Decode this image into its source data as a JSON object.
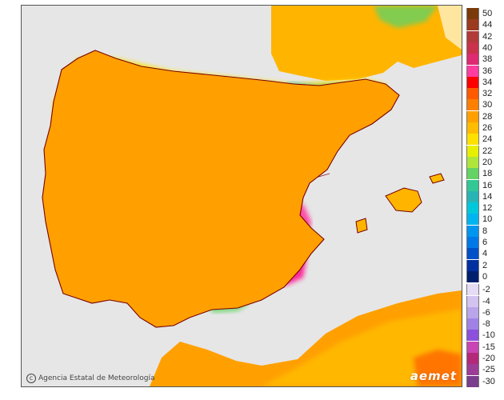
{
  "map": {
    "credit_text": "Agencia Estatal de Meteorología",
    "logo_text": "aemet",
    "colors": {
      "sea": "#e6e6e6",
      "land_base": "#ffa500",
      "hot_zone": "#ff1493",
      "cool_zone": "#7fd87f",
      "very_cool": "#22b0a0",
      "warm_zone": "#ffd400",
      "border": "#7a0000"
    }
  },
  "legend": {
    "positive": [
      {
        "label": "50",
        "color": "#7a3a0a"
      },
      {
        "label": "44",
        "color": "#9b3a1e"
      },
      {
        "label": "42",
        "color": "#b23a3a"
      },
      {
        "label": "40",
        "color": "#c8324a"
      },
      {
        "label": "38",
        "color": "#dd2a70"
      },
      {
        "label": "36",
        "color": "#ff3ca0"
      },
      {
        "label": "34",
        "color": "#ff0000"
      },
      {
        "label": "32",
        "color": "#ff5a00"
      },
      {
        "label": "30",
        "color": "#ff8000"
      },
      {
        "label": "28",
        "color": "#ffa000"
      },
      {
        "label": "26",
        "color": "#ffbc00"
      },
      {
        "label": "24",
        "color": "#ffe100"
      },
      {
        "label": "22",
        "color": "#e6f000"
      },
      {
        "label": "20",
        "color": "#b0e63c"
      },
      {
        "label": "18",
        "color": "#64d264"
      },
      {
        "label": "16",
        "color": "#32c896"
      },
      {
        "label": "14",
        "color": "#28b4b4"
      },
      {
        "label": "12",
        "color": "#00c8dc"
      },
      {
        "label": "10",
        "color": "#00b4f0"
      },
      {
        "label": "8",
        "color": "#0096f0"
      },
      {
        "label": "6",
        "color": "#0078e6"
      },
      {
        "label": "4",
        "color": "#0050c8"
      },
      {
        "label": "2",
        "color": "#0030a0"
      },
      {
        "label": "0",
        "color": "#001e6e"
      }
    ],
    "negative": [
      {
        "label": "-2",
        "color": "#e6dcf5"
      },
      {
        "label": "-4",
        "color": "#d2c3f0"
      },
      {
        "label": "-6",
        "color": "#b9a5ea"
      },
      {
        "label": "-8",
        "color": "#a082e6"
      },
      {
        "label": "-10",
        "color": "#8c50dc"
      },
      {
        "label": "-15",
        "color": "#c846b4"
      },
      {
        "label": "-20",
        "color": "#b4287a"
      },
      {
        "label": "-25",
        "color": "#9c3c96"
      },
      {
        "label": "-30",
        "color": "#7a3c8c"
      }
    ]
  }
}
